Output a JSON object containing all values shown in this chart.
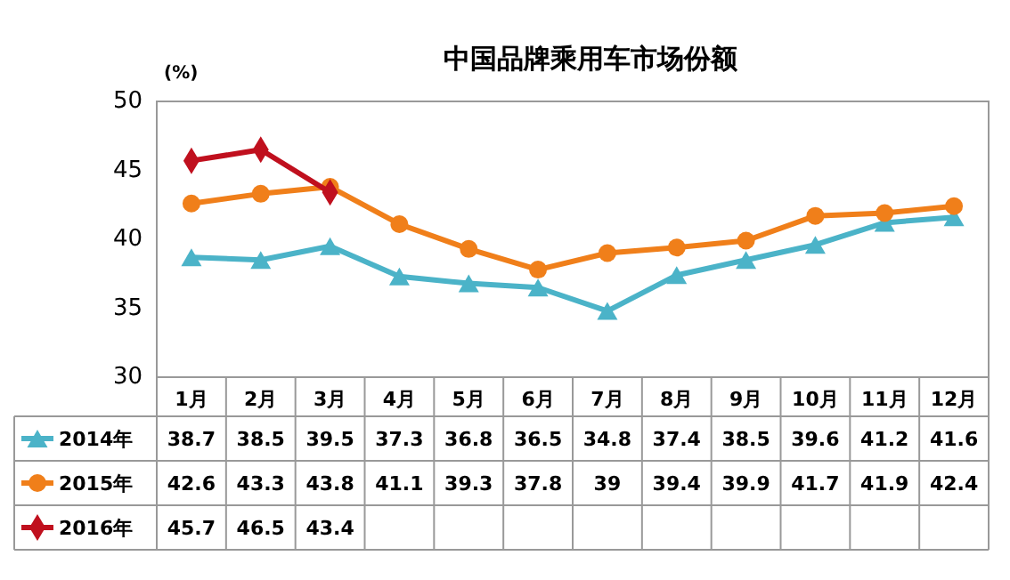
{
  "chart_data": {
    "type": "line",
    "title": "中国品牌乘用车市场份额",
    "ylabel": "(%)",
    "categories": [
      "1月",
      "2月",
      "3月",
      "4月",
      "5月",
      "6月",
      "7月",
      "8月",
      "9月",
      "10月",
      "11月",
      "12月"
    ],
    "series": [
      {
        "name": "2014年",
        "color": "#4bb3c8",
        "marker": "triangle",
        "values": [
          38.7,
          38.5,
          39.5,
          37.3,
          36.8,
          36.5,
          34.8,
          37.4,
          38.5,
          39.6,
          41.2,
          41.6
        ]
      },
      {
        "name": "2015年",
        "color": "#f07f1a",
        "marker": "circle",
        "values": [
          42.6,
          43.3,
          43.8,
          41.1,
          39.3,
          37.8,
          39,
          39.4,
          39.9,
          41.7,
          41.9,
          42.4
        ]
      },
      {
        "name": "2016年",
        "color": "#c0101e",
        "marker": "diamond",
        "values": [
          45.7,
          46.5,
          43.4,
          null,
          null,
          null,
          null,
          null,
          null,
          null,
          null,
          null
        ]
      }
    ],
    "ylim": [
      30,
      50
    ],
    "yticks": [
      30,
      35,
      40,
      45,
      50
    ],
    "grid": false,
    "legend": "bottom left",
    "data_labels": true
  }
}
